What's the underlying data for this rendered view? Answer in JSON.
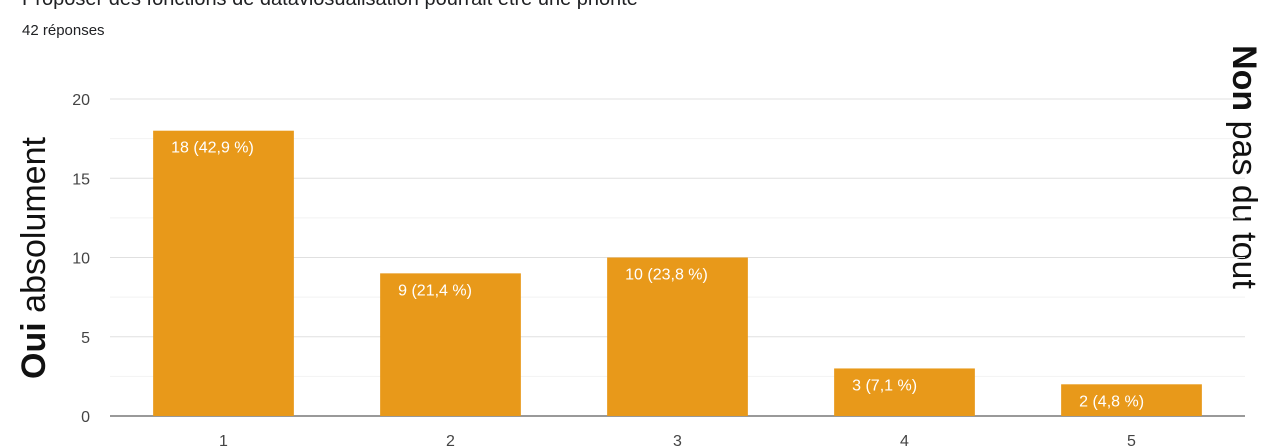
{
  "header": {
    "title": "Proposer des fonctions de dataviosualisation pourrait être une priorité",
    "subtitle": "42 réponses"
  },
  "side_labels": {
    "left_bold": "Oui",
    "left_rest": " absolument",
    "right_bold": "Non",
    "right_rest": " pas du tout"
  },
  "chart_data": {
    "type": "bar",
    "categories": [
      "1",
      "2",
      "3",
      "4",
      "5"
    ],
    "values": [
      18,
      9,
      10,
      3,
      2
    ],
    "data_labels": [
      "18 (42,9 %)",
      "9 (21,4 %)",
      "10 (23,8 %)",
      "3 (7,1 %)",
      "2 (4,8 %)"
    ],
    "ylim": [
      0,
      20
    ],
    "yticks": [
      0,
      5,
      10,
      15,
      20
    ],
    "grid": true,
    "bar_color": "#E8991A",
    "grid_color": "#e0e0e0"
  }
}
